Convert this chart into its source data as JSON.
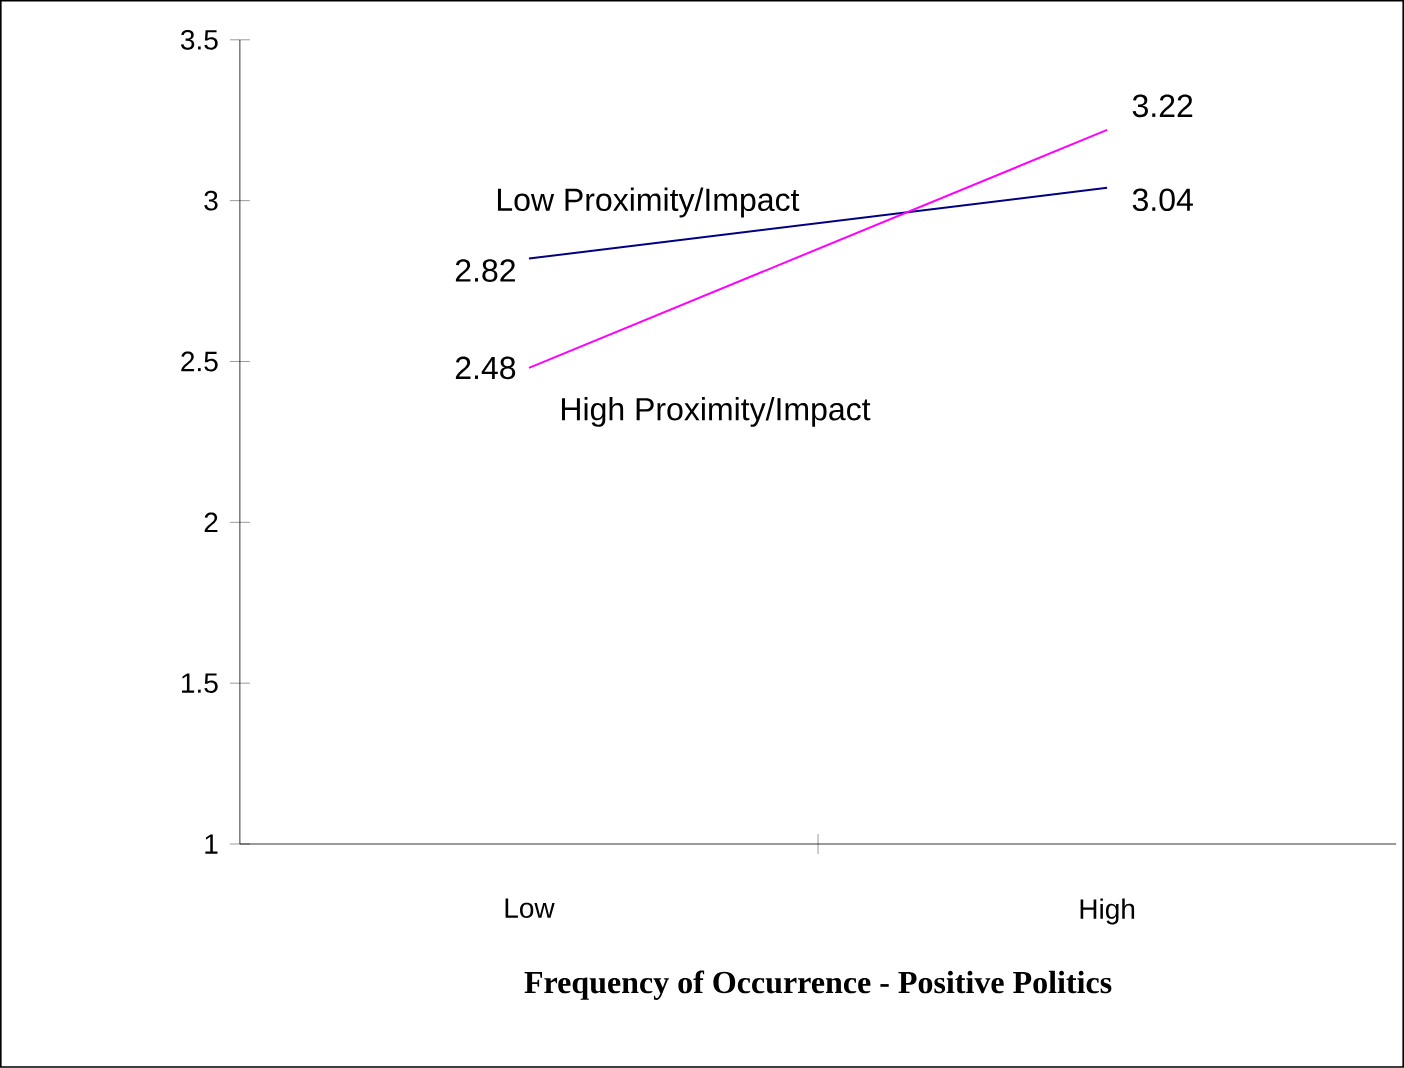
{
  "chart_data": {
    "type": "line",
    "xlabel": "Frequency of Occurrence - Positive Politics",
    "categories": [
      "Low",
      "High"
    ],
    "series": [
      {
        "name": "Low Proximity/Impact",
        "color": "#000080",
        "values": [
          2.82,
          3.04
        ]
      },
      {
        "name": "High Proximity/Impact",
        "color": "#ff00ff",
        "values": [
          2.48,
          3.22
        ]
      }
    ],
    "ylim": [
      1,
      3.5
    ],
    "yticks": [
      1,
      1.5,
      2,
      2.5,
      3,
      3.5
    ],
    "data_labels": true,
    "grid": false,
    "marker": "none",
    "line_style": "solid"
  }
}
